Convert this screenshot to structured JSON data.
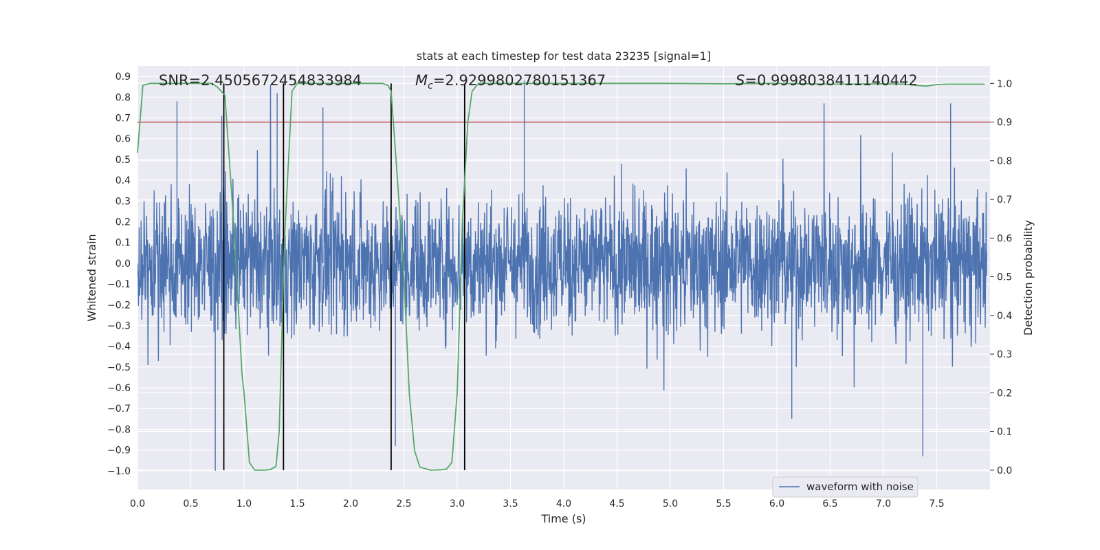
{
  "chart_data": {
    "type": "line",
    "title": "stats at each timestep for test data 23235 [signal=1]",
    "xlabel": "Time (s)",
    "ylabel_left": "Whitened strain",
    "ylabel_right": "Detection probability",
    "xlim": [
      0.0,
      8.0
    ],
    "ylim_left": [
      -1.09,
      0.95
    ],
    "ylim_right": [
      -0.05,
      1.045
    ],
    "x_ticks": [
      "0.0",
      "0.5",
      "1.0",
      "1.5",
      "2.0",
      "2.5",
      "3.0",
      "3.5",
      "4.0",
      "4.5",
      "5.0",
      "5.5",
      "6.0",
      "6.5",
      "7.0",
      "7.5"
    ],
    "y_ticks_left": [
      "0.9",
      "0.8",
      "0.7",
      "0.6",
      "0.5",
      "0.4",
      "0.3",
      "0.2",
      "0.1",
      "0.0",
      "-0.1",
      "-0.2",
      "-0.3",
      "-0.4",
      "-0.5",
      "-0.6",
      "-0.7",
      "-0.8",
      "-0.9",
      "-1.0"
    ],
    "y_ticks_right": [
      "1.0",
      "0.9",
      "0.8",
      "0.7",
      "0.6",
      "0.5",
      "0.4",
      "0.3",
      "0.2",
      "0.1",
      "0.0"
    ],
    "annotations": {
      "snr": "SNR=2.4505672454833984",
      "mc_symbol": "M",
      "mc_subscript": "c",
      "mc_value": "=2.9299802780151367",
      "s_symbol": "S",
      "s_value": "=0.9998038411140442"
    },
    "legend": {
      "entries": [
        "waveform with noise"
      ],
      "placement": "lower-right"
    },
    "threshold_line": {
      "y_right": 0.9,
      "color": "#c44e52"
    },
    "vertical_lines_x": [
      0.81,
      1.37,
      2.38,
      3.07
    ],
    "series": [
      {
        "name": "waveform with noise",
        "axis": "left",
        "color": "#4c72b0",
        "description": "dense noisy strain, mostly within -0.45..0.45 with spikes",
        "notable_peaks": [
          [
            0.37,
            0.78
          ],
          [
            0.73,
            -1.0
          ],
          [
            1.31,
            0.82
          ],
          [
            1.74,
            0.75
          ],
          [
            2.42,
            -0.88
          ],
          [
            3.63,
            0.88
          ],
          [
            6.14,
            -0.75
          ],
          [
            7.37,
            -0.93
          ],
          [
            7.63,
            0.77
          ]
        ]
      },
      {
        "name": "Detection probability",
        "axis": "right",
        "color": "#55a868",
        "x": [
          0.0,
          0.05,
          0.12,
          0.7,
          0.75,
          0.82,
          0.9,
          0.98,
          1.0,
          1.05,
          1.1,
          1.17,
          1.2,
          1.25,
          1.3,
          1.33,
          1.38,
          1.45,
          1.5,
          2.3,
          2.35,
          2.38,
          2.44,
          2.5,
          2.55,
          2.6,
          2.65,
          2.75,
          2.85,
          2.9,
          2.95,
          3.0,
          3.05,
          3.1,
          3.14,
          3.2,
          3.3,
          4.0,
          5.0,
          5.5,
          6.0,
          6.5,
          7.0,
          7.2,
          7.3,
          7.4,
          7.5,
          7.6,
          7.95
        ],
        "y": [
          0.82,
          0.995,
          1.0,
          1.0,
          0.99,
          0.97,
          0.65,
          0.25,
          0.2,
          0.02,
          0.0,
          0.0,
          0.0,
          0.002,
          0.01,
          0.1,
          0.6,
          0.98,
          1.0,
          1.0,
          0.995,
          0.98,
          0.75,
          0.5,
          0.2,
          0.05,
          0.008,
          0.0,
          0.001,
          0.003,
          0.02,
          0.2,
          0.65,
          0.9,
          0.98,
          1.0,
          1.0,
          1.0,
          1.0,
          0.999,
          1.0,
          0.998,
          0.999,
          0.998,
          0.995,
          0.993,
          0.997,
          0.998,
          0.998
        ]
      }
    ]
  }
}
